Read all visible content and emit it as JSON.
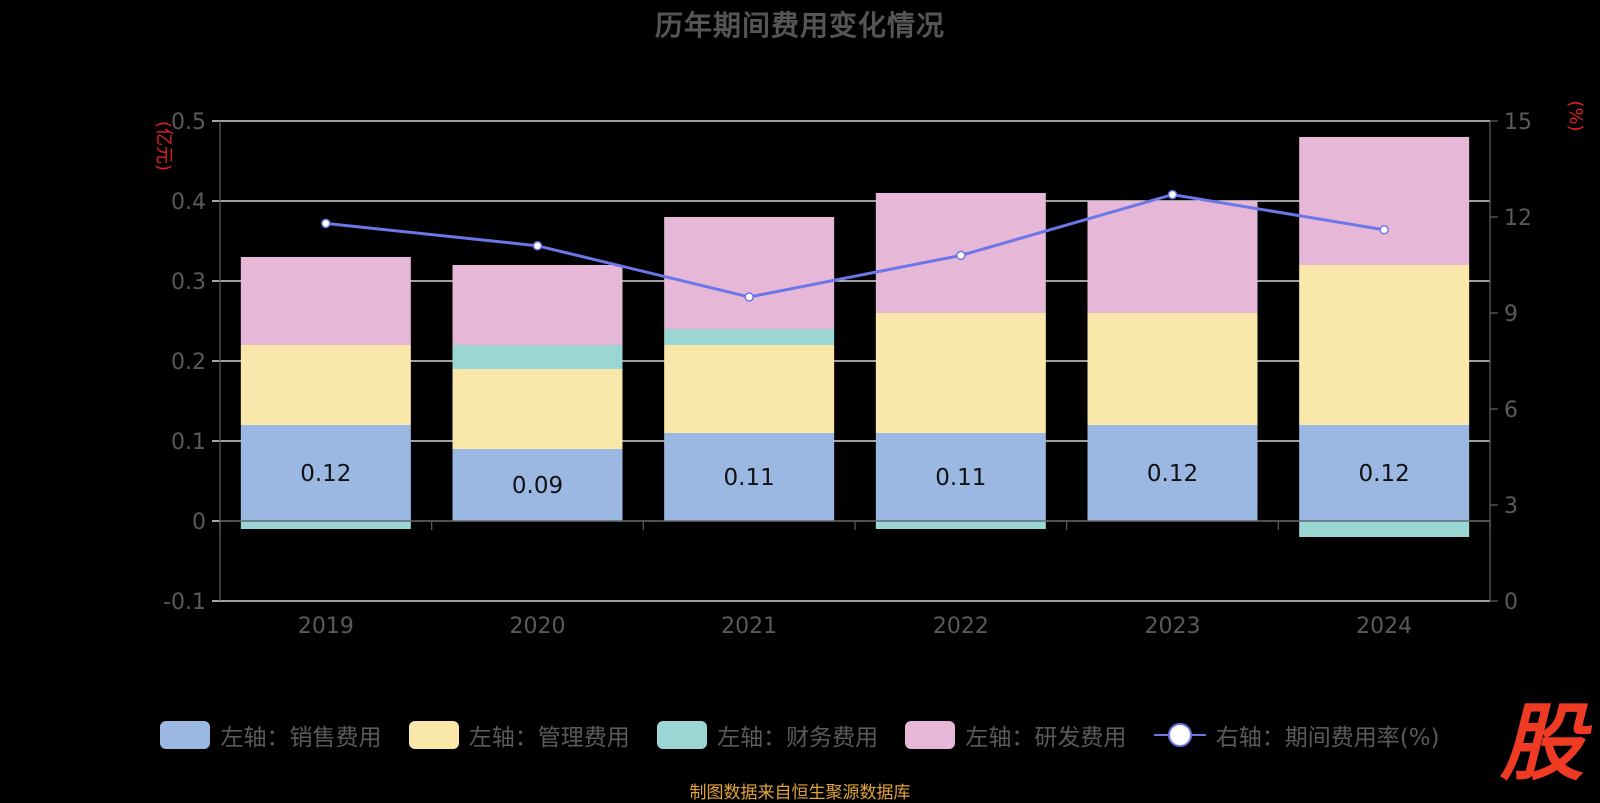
{
  "colors": {
    "sales": "#9bb8e2",
    "admin": "#f9e8a9",
    "finance": "#9ad7d4",
    "rd": "#e7b7d8",
    "line": "#6b77e8",
    "left_unit": "#e02020",
    "right_unit": "#e02020",
    "axis_text": "#5a5a5a",
    "grid": "#ffffff"
  },
  "logo": {
    "icon": "stock-logo-icon",
    "text": "股"
  },
  "source": "制图数据来自恒生聚源数据库",
  "chart_data": {
    "type": "bar",
    "stacked": true,
    "title": "历年期间费用变化情况",
    "categories": [
      "2019",
      "2020",
      "2021",
      "2022",
      "2023",
      "2024"
    ],
    "series": [
      {
        "key": "sales",
        "name": "左轴：销售费用",
        "axis": "left",
        "values": [
          0.12,
          0.09,
          0.11,
          0.11,
          0.12,
          0.12
        ]
      },
      {
        "key": "admin",
        "name": "左轴：管理费用",
        "axis": "left",
        "values": [
          0.1,
          0.1,
          0.11,
          0.15,
          0.14,
          0.2
        ]
      },
      {
        "key": "finance",
        "name": "左轴：财务费用",
        "axis": "left",
        "values": [
          -0.01,
          0.03,
          0.02,
          -0.01,
          0.0,
          -0.02
        ]
      },
      {
        "key": "rd",
        "name": "左轴：研发费用",
        "axis": "left",
        "values": [
          0.11,
          0.1,
          0.14,
          0.15,
          0.14,
          0.16
        ]
      },
      {
        "key": "rate",
        "name": "右轴：期间费用率(%)",
        "axis": "right",
        "type": "line",
        "values": [
          11.8,
          11.1,
          9.5,
          10.8,
          12.7,
          11.6
        ]
      }
    ],
    "data_labels": [
      "0.12",
      "0.09",
      "0.11",
      "0.11",
      "0.12",
      "0.12"
    ],
    "left_axis": {
      "unit": "(亿元)",
      "ylim": [
        -0.1,
        0.5
      ],
      "ticks": [
        "-0.1",
        "0",
        "0.1",
        "0.2",
        "0.3",
        "0.4",
        "0.5"
      ],
      "tick_values": [
        -0.1,
        0,
        0.1,
        0.2,
        0.3,
        0.4,
        0.5
      ]
    },
    "right_axis": {
      "unit": "(%)",
      "ylim": [
        0,
        15
      ],
      "ticks": [
        "0",
        "3",
        "6",
        "9",
        "12",
        "15"
      ],
      "tick_values": [
        0,
        3,
        6,
        9,
        12,
        15
      ]
    },
    "grid": true,
    "legend_position": "bottom"
  }
}
